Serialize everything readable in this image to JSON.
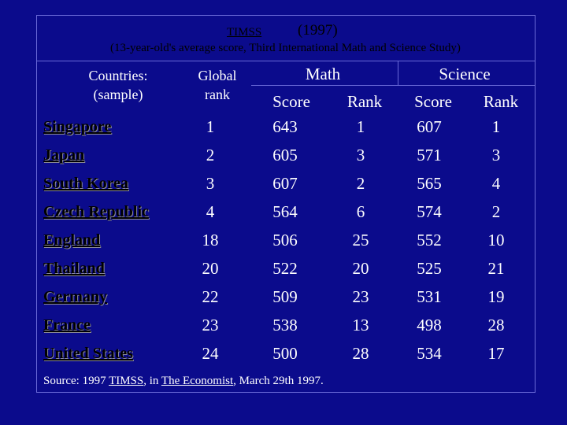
{
  "title": {
    "acronym": "TIMSS",
    "year": "(1997)",
    "subtitle": "(13-year-old's average score, Third International Math and Science Study)"
  },
  "headers": {
    "countries": "Countries:",
    "countries_sub": "(sample)",
    "global": "Global",
    "global_sub": "rank",
    "math": "Math",
    "science": "Science",
    "score": "Score",
    "rank": "Rank"
  },
  "rows": [
    {
      "country": "Singapore",
      "global": "1",
      "math_score": "643",
      "math_rank": "1",
      "sci_score": "607",
      "sci_rank": "1"
    },
    {
      "country": "Japan",
      "global": "2",
      "math_score": "605",
      "math_rank": "3",
      "sci_score": "571",
      "sci_rank": "3"
    },
    {
      "country": "South Korea",
      "global": "3",
      "math_score": "607",
      "math_rank": "2",
      "sci_score": "565",
      "sci_rank": "4"
    },
    {
      "country": "Czech Republic",
      "global": "4",
      "math_score": "564",
      "math_rank": "6",
      "sci_score": "574",
      "sci_rank": "2"
    },
    {
      "country": "England",
      "global": "18",
      "math_score": "506",
      "math_rank": "25",
      "sci_score": "552",
      "sci_rank": "10"
    },
    {
      "country": "Thailand",
      "global": "20",
      "math_score": "522",
      "math_rank": "20",
      "sci_score": "525",
      "sci_rank": "21"
    },
    {
      "country": "Germany",
      "global": "22",
      "math_score": "509",
      "math_rank": "23",
      "sci_score": "531",
      "sci_rank": "19"
    },
    {
      "country": "France",
      "global": "23",
      "math_score": "538",
      "math_rank": "13",
      "sci_score": "498",
      "sci_rank": "28"
    },
    {
      "country": "United States",
      "global": "24",
      "math_score": "500",
      "math_rank": "28",
      "sci_score": "534",
      "sci_rank": "17"
    }
  ],
  "source": {
    "prefix": "Source: 1997 ",
    "study": "TIMSS",
    "middle": ", in ",
    "publication": "The Economist",
    "suffix": ", March 29th 1997."
  }
}
